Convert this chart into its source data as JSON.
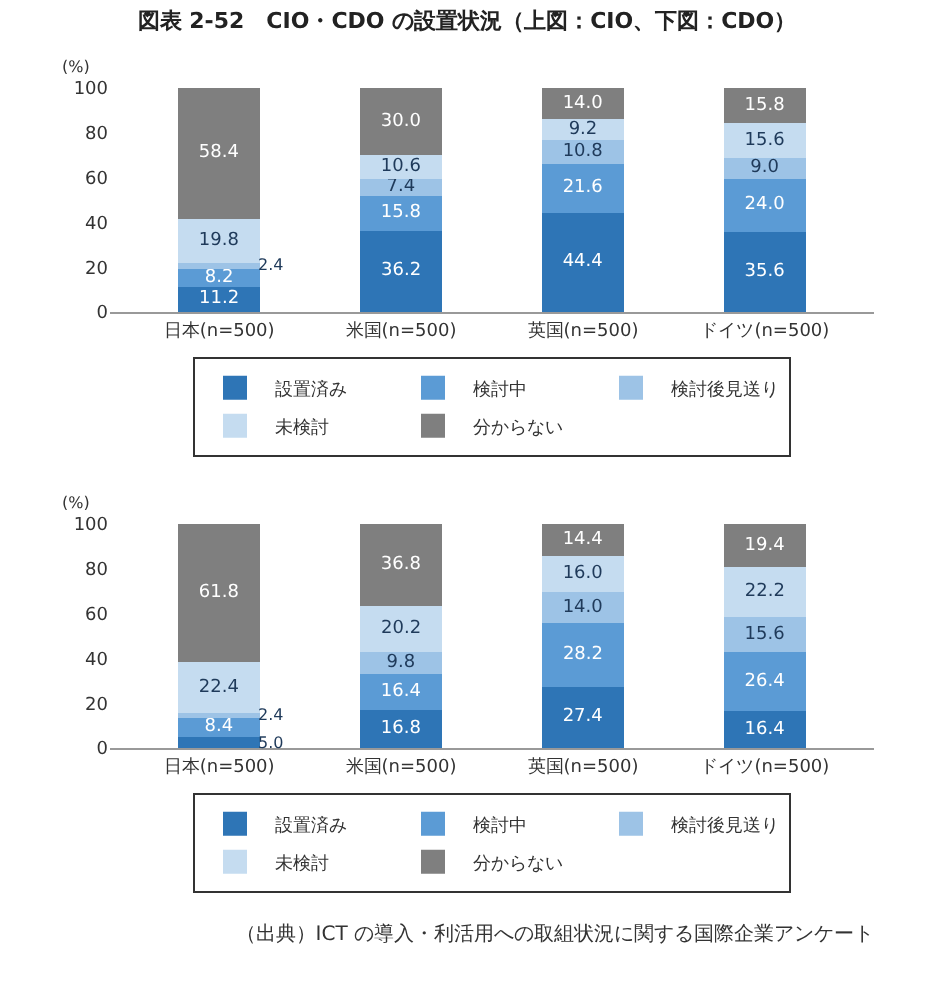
{
  "chart_data": [
    {
      "type": "bar",
      "title": "図表 2-52　CIO・CDO の設置状況（上図：CIO、下図：CDO）",
      "ylabel": "(%)",
      "categories": [
        "日本(n=500)",
        "米国(n=500)",
        "英国(n=500)",
        "ドイツ(n=500)"
      ],
      "stacked": true,
      "ylim": [
        0,
        100
      ],
      "yticks": [
        0,
        20,
        40,
        60,
        80,
        100
      ],
      "grid": false,
      "legend": "bottom",
      "series": [
        {
          "name": "設置済み",
          "color": "#2e75b6",
          "values": [
            11.2,
            36.2,
            44.4,
            35.6
          ],
          "value_labels": [
            "11.2",
            "36.2",
            "44.4",
            "35.6"
          ]
        },
        {
          "name": "検討中",
          "color": "#5b9bd5",
          "values": [
            8.2,
            15.8,
            21.6,
            24.0
          ],
          "value_labels": [
            "8.2",
            "15.8",
            "21.6",
            "24.0"
          ]
        },
        {
          "name": "検討後見送り",
          "color": "#9dc3e6",
          "values": [
            2.4,
            7.4,
            10.8,
            9.0
          ],
          "value_labels": [
            "2.4",
            "7.4",
            "10.8",
            "9.0"
          ]
        },
        {
          "name": "未検討",
          "color": "#c5dcf0",
          "values": [
            19.8,
            10.6,
            9.2,
            15.6
          ],
          "value_labels": [
            "19.8",
            "10.6",
            "9.2",
            "15.6"
          ]
        },
        {
          "name": "分からない",
          "color": "#7f7f7f",
          "values": [
            58.4,
            30.0,
            14.0,
            15.8
          ],
          "value_labels": [
            "58.4",
            "30.0",
            "14.0",
            "15.8"
          ]
        }
      ]
    },
    {
      "type": "bar",
      "ylabel": "(%)",
      "categories": [
        "日本(n=500)",
        "米国(n=500)",
        "英国(n=500)",
        "ドイツ(n=500)"
      ],
      "stacked": true,
      "ylim": [
        0,
        100
      ],
      "yticks": [
        0,
        20,
        40,
        60,
        80,
        100
      ],
      "grid": false,
      "legend": "bottom",
      "annotations": [
        "（出典）ICT の導入・利活用への取組状況に関する国際企業アンケート"
      ],
      "series": [
        {
          "name": "設置済み",
          "color": "#2e75b6",
          "values": [
            5.0,
            16.8,
            27.4,
            16.4
          ],
          "value_labels": [
            "5.0",
            "16.8",
            "27.4",
            "16.4"
          ]
        },
        {
          "name": "検討中",
          "color": "#5b9bd5",
          "values": [
            8.4,
            16.4,
            28.2,
            26.4
          ],
          "value_labels": [
            "8.4",
            "16.4",
            "28.2",
            "26.4"
          ]
        },
        {
          "name": "検討後見送り",
          "color": "#9dc3e6",
          "values": [
            2.4,
            9.8,
            14.0,
            15.6
          ],
          "value_labels": [
            "2.4",
            "9.8",
            "14.0",
            "15.6"
          ]
        },
        {
          "name": "未検討",
          "color": "#c5dcf0",
          "values": [
            22.4,
            20.2,
            16.0,
            22.2
          ],
          "value_labels": [
            "22.4",
            "20.2",
            "16.0",
            "22.2"
          ]
        },
        {
          "name": "分からない",
          "color": "#7f7f7f",
          "values": [
            61.8,
            36.8,
            14.4,
            19.4
          ],
          "value_labels": [
            "61.8",
            "36.8",
            "14.4",
            "19.4"
          ]
        }
      ]
    }
  ]
}
